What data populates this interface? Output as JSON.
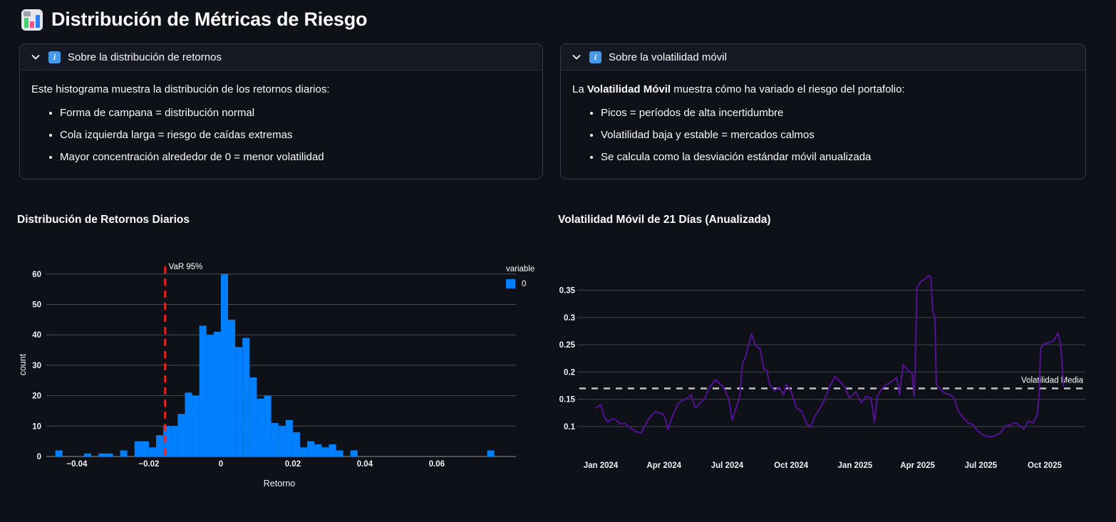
{
  "page": {
    "title": "Distribución de Métricas de Riesgo"
  },
  "expanders": [
    {
      "title": "Sobre la distribución de retornos",
      "intro": "Este histograma muestra la distribución de los retornos diarios:",
      "bullets": [
        "Forma de campana = distribución normal",
        "Cola izquierda larga = riesgo de caídas extremas",
        "Mayor concentración alrededor de 0 = menor volatilidad"
      ]
    },
    {
      "title": "Sobre la volatilidad móvil",
      "intro_prefix": "La ",
      "intro_bold": "Volatilidad Móvil",
      "intro_suffix": " muestra cómo ha variado el riesgo del portafolio:",
      "bullets": [
        "Picos = períodos de alta incertidumbre",
        "Volatilidad baja y estable = mercados calmos",
        "Se calcula como la desviación estándar móvil anualizada"
      ]
    }
  ],
  "chart_data": [
    {
      "type": "bar",
      "title": "Distribución de Retornos Diarios",
      "xlabel": "Retorno",
      "ylabel": "count",
      "bar_color": "#0080ff",
      "bin_width": 0.002,
      "bin_starts": [
        -0.046,
        -0.044,
        -0.042,
        -0.04,
        -0.038,
        -0.036,
        -0.034,
        -0.032,
        -0.03,
        -0.028,
        -0.026,
        -0.024,
        -0.022,
        -0.02,
        -0.018,
        -0.016,
        -0.014,
        -0.012,
        -0.01,
        -0.008,
        -0.006,
        -0.004,
        -0.002,
        0.0,
        0.002,
        0.004,
        0.006,
        0.008,
        0.01,
        0.012,
        0.014,
        0.016,
        0.018,
        0.02,
        0.022,
        0.024,
        0.026,
        0.028,
        0.03,
        0.032,
        0.034,
        0.036,
        0.074
      ],
      "counts": [
        2,
        0,
        0,
        0,
        1,
        0,
        1,
        1,
        0,
        2,
        0,
        5,
        5,
        3,
        7,
        10,
        10,
        14,
        21,
        20,
        43,
        40,
        41,
        60,
        45,
        36,
        39,
        26,
        19,
        20,
        11,
        10,
        12,
        8,
        3,
        5,
        4,
        3,
        4,
        2,
        0,
        2,
        2
      ],
      "xticks": [
        -0.04,
        -0.02,
        0,
        0.02,
        0.04,
        0.06
      ],
      "yticks": [
        0,
        10,
        20,
        30,
        40,
        50,
        60
      ],
      "xlim": [
        -0.0485,
        0.082
      ],
      "ylim": [
        0,
        63
      ],
      "grid": true,
      "legend": {
        "title": "variable",
        "items": [
          {
            "label": "0",
            "color": "#0080ff"
          }
        ]
      },
      "var_line": {
        "label": "VaR 95%",
        "x": -0.0155,
        "color": "#ff1f1f",
        "style": "dashed"
      }
    },
    {
      "type": "line",
      "title": "Volatilidad Móvil de 21 Días (Anualizada)",
      "xlabel": "",
      "ylabel": "",
      "yticks": [
        0.1,
        0.15,
        0.2,
        0.25,
        0.3,
        0.35
      ],
      "ylim": [
        0.07,
        0.412
      ],
      "grid": true,
      "legend_position": "none",
      "mean_line": {
        "label": "Volatilidad Media",
        "y": 0.17,
        "color": "#c9c9c9",
        "style": "dashed"
      },
      "xticks": [
        {
          "label": "Jan 2024",
          "date": "2024-01-01"
        },
        {
          "label": "Apr 2024",
          "date": "2024-04-01"
        },
        {
          "label": "Jul 2024",
          "date": "2024-07-01"
        },
        {
          "label": "Oct 2024",
          "date": "2024-10-01"
        },
        {
          "label": "Jan 2025",
          "date": "2025-01-01"
        },
        {
          "label": "Apr 2025",
          "date": "2025-04-01"
        },
        {
          "label": "Jul 2025",
          "date": "2025-07-01"
        },
        {
          "label": "Oct 2025",
          "date": "2025-10-01"
        }
      ],
      "series": [
        {
          "name": "volatility",
          "color": "#541196",
          "points": [
            [
              "2023-12-25",
              0.134
            ],
            [
              "2024-01-01",
              0.14
            ],
            [
              "2024-01-06",
              0.118
            ],
            [
              "2024-01-11",
              0.108
            ],
            [
              "2024-01-17",
              0.115
            ],
            [
              "2024-01-23",
              0.112
            ],
            [
              "2024-01-29",
              0.105
            ],
            [
              "2024-02-04",
              0.106
            ],
            [
              "2024-02-10",
              0.1
            ],
            [
              "2024-02-16",
              0.095
            ],
            [
              "2024-02-22",
              0.09
            ],
            [
              "2024-02-28",
              0.088
            ],
            [
              "2024-03-04",
              0.1
            ],
            [
              "2024-03-09",
              0.112
            ],
            [
              "2024-03-14",
              0.12
            ],
            [
              "2024-03-19",
              0.127
            ],
            [
              "2024-03-25",
              0.125
            ],
            [
              "2024-03-31",
              0.123
            ],
            [
              "2024-04-04",
              0.11
            ],
            [
              "2024-04-07",
              0.095
            ],
            [
              "2024-04-12",
              0.115
            ],
            [
              "2024-04-17",
              0.13
            ],
            [
              "2024-04-22",
              0.143
            ],
            [
              "2024-04-28",
              0.148
            ],
            [
              "2024-05-04",
              0.152
            ],
            [
              "2024-05-10",
              0.158
            ],
            [
              "2024-05-16",
              0.134
            ],
            [
              "2024-05-21",
              0.14
            ],
            [
              "2024-05-26",
              0.147
            ],
            [
              "2024-05-31",
              0.155
            ],
            [
              "2024-06-04",
              0.168
            ],
            [
              "2024-06-09",
              0.178
            ],
            [
              "2024-06-14",
              0.186
            ],
            [
              "2024-06-19",
              0.18
            ],
            [
              "2024-06-24",
              0.175
            ],
            [
              "2024-06-27",
              0.168
            ],
            [
              "2024-07-03",
              0.152
            ],
            [
              "2024-07-08",
              0.112
            ],
            [
              "2024-07-12",
              0.128
            ],
            [
              "2024-07-16",
              0.143
            ],
            [
              "2024-07-19",
              0.155
            ],
            [
              "2024-07-23",
              0.215
            ],
            [
              "2024-07-27",
              0.228
            ],
            [
              "2024-07-30",
              0.24
            ],
            [
              "2024-08-02",
              0.255
            ],
            [
              "2024-08-05",
              0.27
            ],
            [
              "2024-08-08",
              0.258
            ],
            [
              "2024-08-11",
              0.248
            ],
            [
              "2024-08-17",
              0.243
            ],
            [
              "2024-08-23",
              0.205
            ],
            [
              "2024-08-27",
              0.203
            ],
            [
              "2024-08-31",
              0.177
            ],
            [
              "2024-09-07",
              0.166
            ],
            [
              "2024-09-14",
              0.172
            ],
            [
              "2024-09-20",
              0.158
            ],
            [
              "2024-09-24",
              0.177
            ],
            [
              "2024-10-01",
              0.164
            ],
            [
              "2024-10-09",
              0.134
            ],
            [
              "2024-10-16",
              0.128
            ],
            [
              "2024-10-23",
              0.106
            ],
            [
              "2024-10-29",
              0.099
            ],
            [
              "2024-11-04",
              0.119
            ],
            [
              "2024-11-12",
              0.134
            ],
            [
              "2024-11-19",
              0.152
            ],
            [
              "2024-11-26",
              0.175
            ],
            [
              "2024-12-03",
              0.192
            ],
            [
              "2024-12-11",
              0.182
            ],
            [
              "2024-12-18",
              0.171
            ],
            [
              "2024-12-24",
              0.152
            ],
            [
              "2025-01-02",
              0.164
            ],
            [
              "2025-01-10",
              0.143
            ],
            [
              "2025-01-17",
              0.156
            ],
            [
              "2025-01-24",
              0.152
            ],
            [
              "2025-01-29",
              0.108
            ],
            [
              "2025-02-02",
              0.156
            ],
            [
              "2025-02-08",
              0.168
            ],
            [
              "2025-02-15",
              0.177
            ],
            [
              "2025-02-22",
              0.182
            ],
            [
              "2025-03-02",
              0.19
            ],
            [
              "2025-03-06",
              0.158
            ],
            [
              "2025-03-11",
              0.213
            ],
            [
              "2025-03-19",
              0.203
            ],
            [
              "2025-03-24",
              0.198
            ],
            [
              "2025-03-27",
              0.155
            ],
            [
              "2025-03-29",
              0.23
            ],
            [
              "2025-03-31",
              0.355
            ],
            [
              "2025-04-06",
              0.366
            ],
            [
              "2025-04-12",
              0.371
            ],
            [
              "2025-04-17",
              0.377
            ],
            [
              "2025-04-20",
              0.374
            ],
            [
              "2025-04-23",
              0.31
            ],
            [
              "2025-04-26",
              0.3
            ],
            [
              "2025-04-28",
              0.177
            ],
            [
              "2025-05-02",
              0.171
            ],
            [
              "2025-05-10",
              0.161
            ],
            [
              "2025-05-17",
              0.159
            ],
            [
              "2025-05-24",
              0.152
            ],
            [
              "2025-05-29",
              0.13
            ],
            [
              "2025-06-05",
              0.117
            ],
            [
              "2025-06-13",
              0.106
            ],
            [
              "2025-06-20",
              0.104
            ],
            [
              "2025-06-24",
              0.095
            ],
            [
              "2025-06-30",
              0.088
            ],
            [
              "2025-07-07",
              0.083
            ],
            [
              "2025-07-14",
              0.081
            ],
            [
              "2025-07-21",
              0.083
            ],
            [
              "2025-07-29",
              0.088
            ],
            [
              "2025-08-05",
              0.101
            ],
            [
              "2025-08-12",
              0.103
            ],
            [
              "2025-08-20",
              0.107
            ],
            [
              "2025-08-27",
              0.101
            ],
            [
              "2025-09-01",
              0.095
            ],
            [
              "2025-09-07",
              0.11
            ],
            [
              "2025-09-14",
              0.107
            ],
            [
              "2025-09-20",
              0.12
            ],
            [
              "2025-09-23",
              0.16
            ],
            [
              "2025-09-25",
              0.243
            ],
            [
              "2025-09-30",
              0.252
            ],
            [
              "2025-10-08",
              0.254
            ],
            [
              "2025-10-14",
              0.258
            ],
            [
              "2025-10-20",
              0.272
            ],
            [
              "2025-10-24",
              0.251
            ],
            [
              "2025-10-28",
              0.175
            ]
          ]
        }
      ]
    }
  ]
}
